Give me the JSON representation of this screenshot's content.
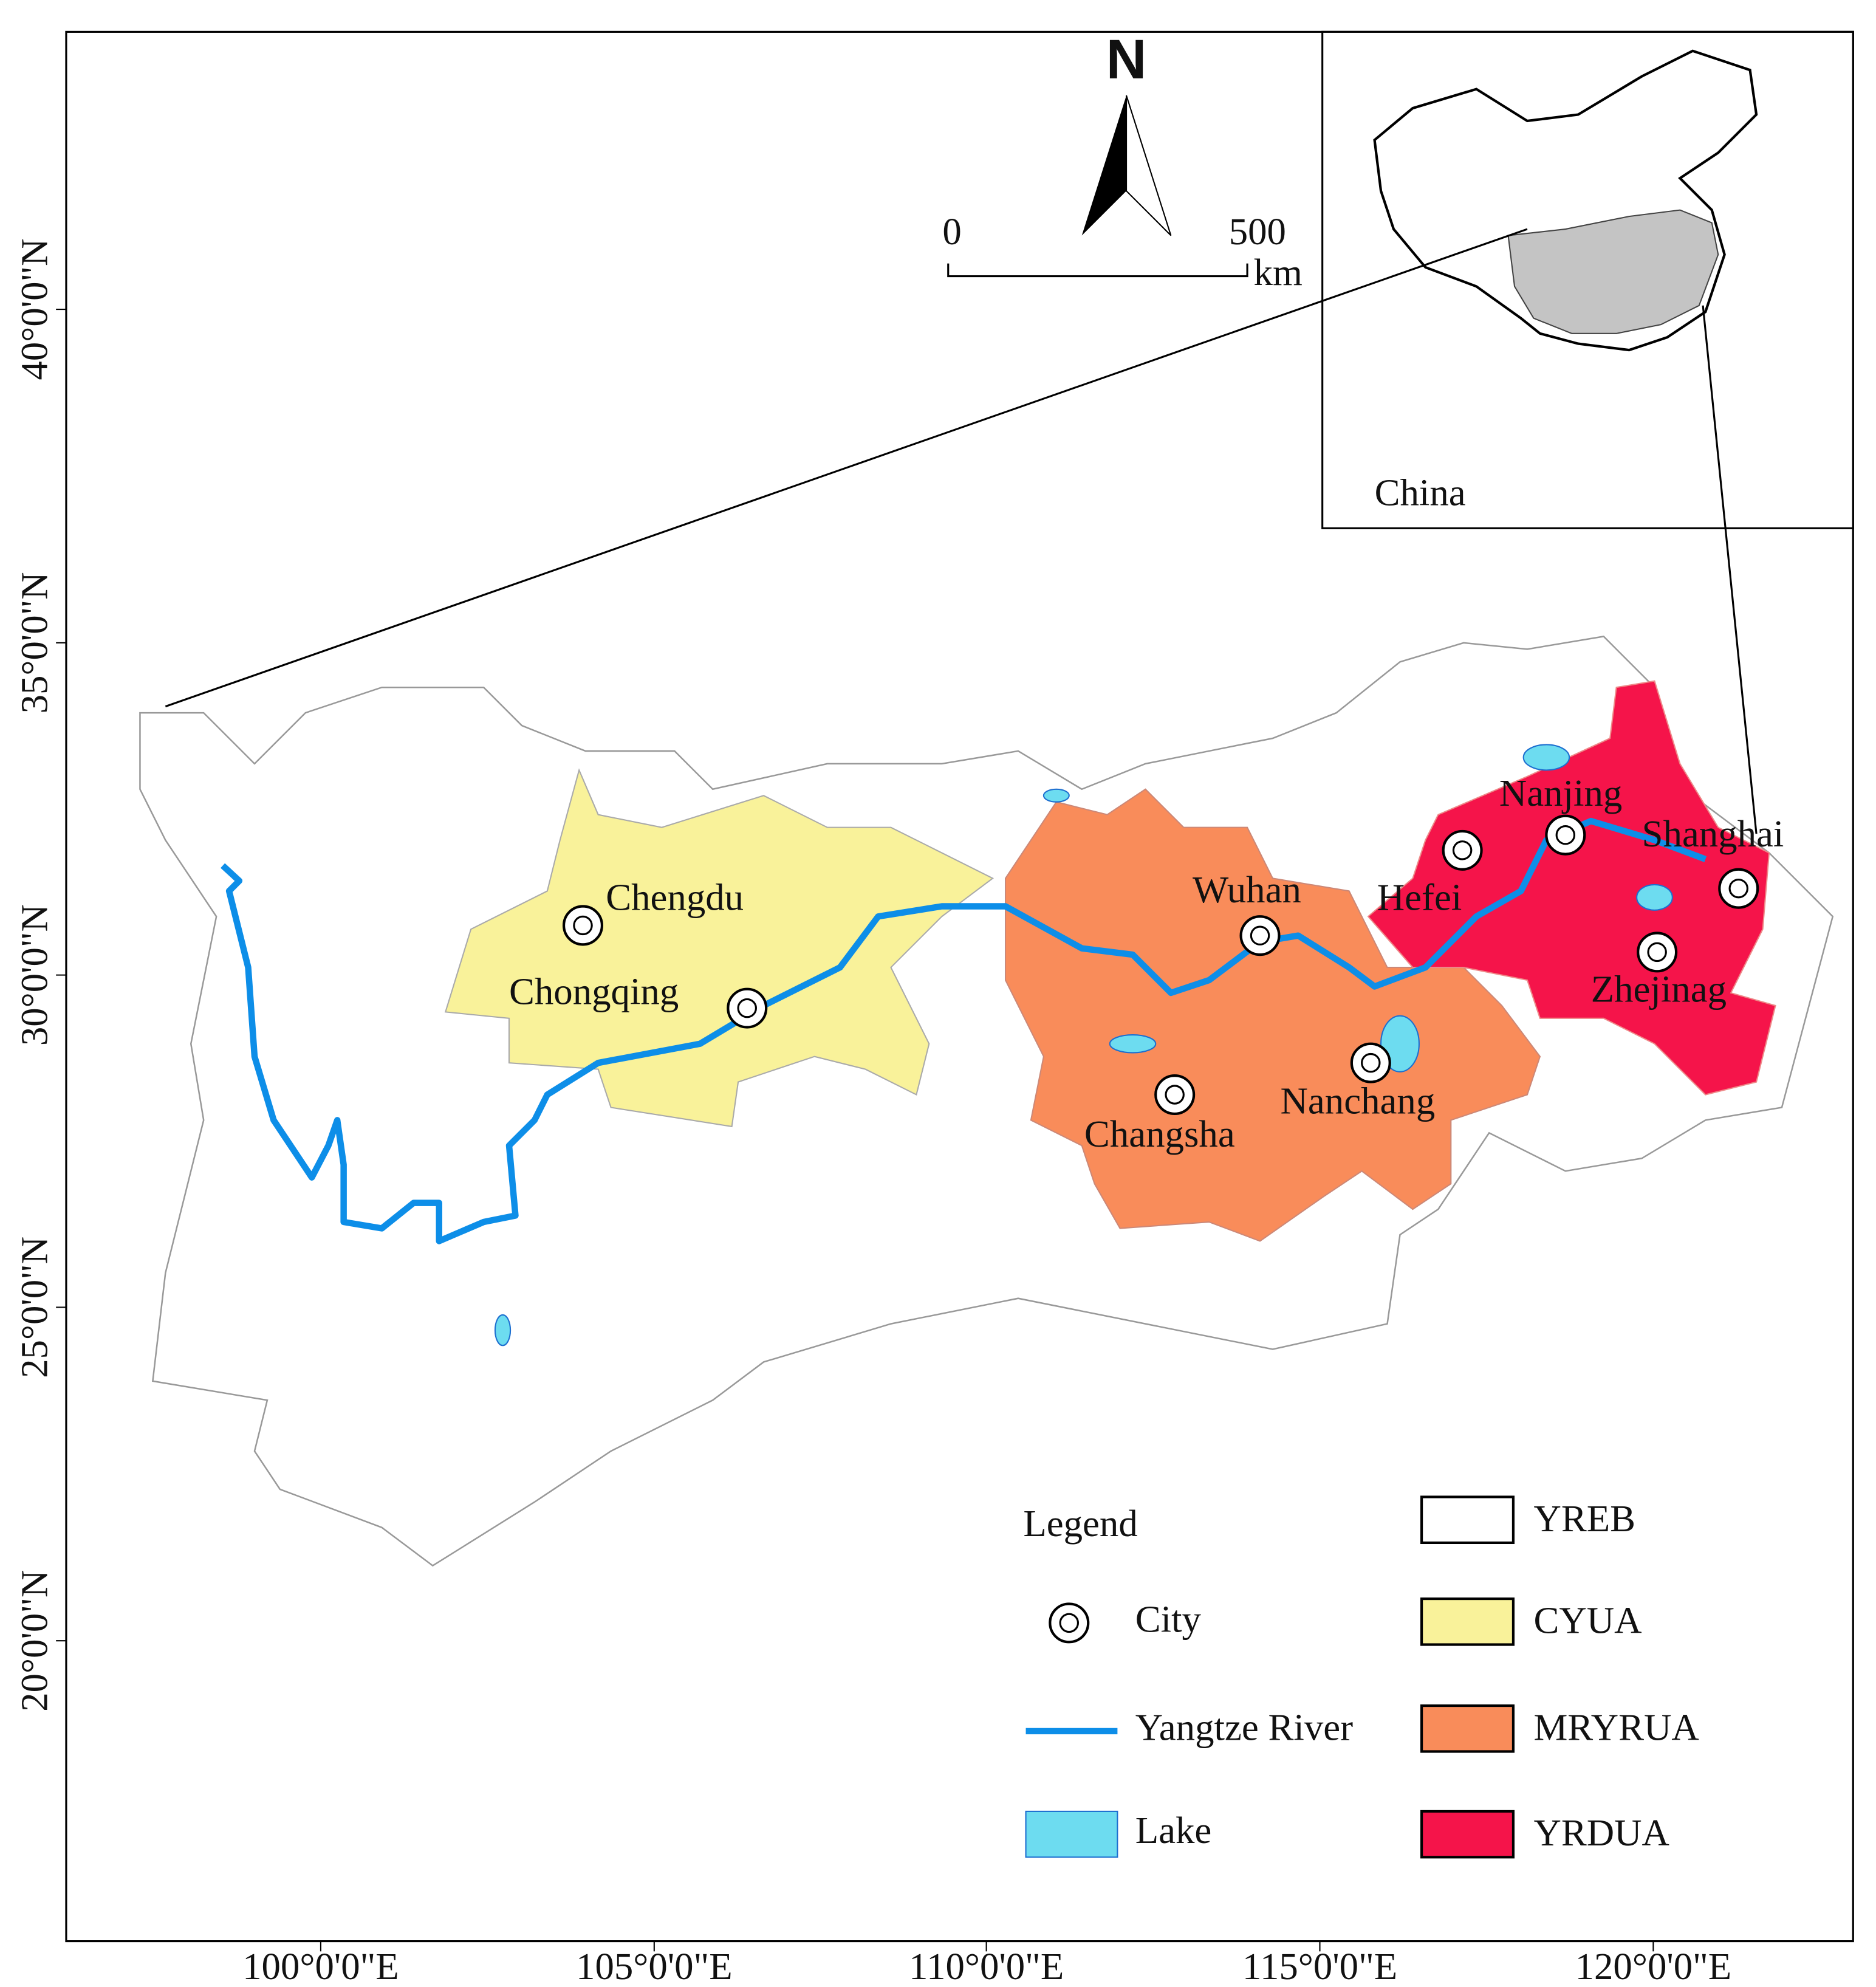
{
  "north_arrow": "N",
  "scale_bar": {
    "start": "0",
    "end": "500",
    "unit": "km"
  },
  "inset": {
    "label": "China"
  },
  "axes": {
    "lat_ticks": [
      "40°0'0\"N",
      "35°0'0\"N",
      "30°0'0\"N",
      "25°0'0\"N",
      "20°0'0\"N"
    ],
    "lon_ticks": [
      "100°0'0\"E",
      "105°0'0\"E",
      "110°0'0\"E",
      "115°0'0\"E",
      "120°0'0\"E"
    ]
  },
  "cities": [
    "Chengdu",
    "Chongqing",
    "Wuhan",
    "Hefei",
    "Nanjing",
    "Shanghai",
    "Zhejinag",
    "Changsha",
    "Nanchang"
  ],
  "legend": {
    "title": "Legend",
    "items": [
      "City",
      "Yangtze River",
      "Lake"
    ],
    "regions": [
      "YREB",
      "CYUA",
      "MRYRUA",
      "YRDUA"
    ]
  }
}
